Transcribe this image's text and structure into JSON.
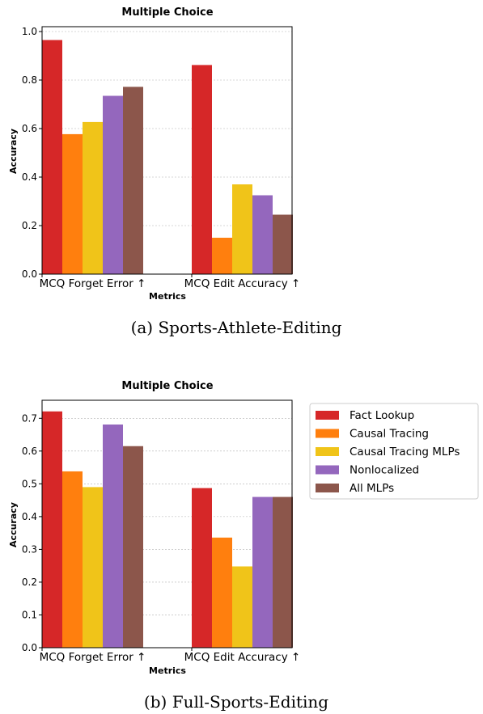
{
  "panels": [
    {
      "caption": "(a) Sports-Athlete-Editing",
      "chart_data": {
        "type": "bar",
        "title": "Multiple Choice",
        "xlabel": "Metrics",
        "ylabel": "Accuracy",
        "ylim": [
          0,
          1.02
        ],
        "yticks": [
          0.0,
          0.2,
          0.4,
          0.6,
          0.8,
          1.0
        ],
        "ytick_labels": [
          "0.0",
          "0.2",
          "0.4",
          "0.6",
          "0.8",
          "1.0"
        ],
        "grid": "horizontal",
        "categories": [
          "MCQ Forget Error ↑",
          "MCQ Edit Accuracy ↑"
        ],
        "series": [
          {
            "name": "Fact Lookup",
            "values": [
              0.965,
              0.862
            ]
          },
          {
            "name": "Causal Tracing",
            "values": [
              0.577,
              0.15
            ]
          },
          {
            "name": "Causal Tracing MLPs",
            "values": [
              0.627,
              0.37
            ]
          },
          {
            "name": "Nonlocalized",
            "values": [
              0.735,
              0.325
            ]
          },
          {
            "name": "All MLPs",
            "values": [
              0.772,
              0.245
            ]
          }
        ]
      }
    },
    {
      "caption": "(b) Full-Sports-Editing",
      "chart_data": {
        "type": "bar",
        "title": "Multiple Choice",
        "xlabel": "Metrics",
        "ylabel": "Accuracy",
        "ylim": [
          0,
          0.755
        ],
        "yticks": [
          0.0,
          0.1,
          0.2,
          0.3,
          0.4,
          0.5,
          0.6,
          0.7
        ],
        "ytick_labels": [
          "0.0",
          "0.1",
          "0.2",
          "0.3",
          "0.4",
          "0.5",
          "0.6",
          "0.7"
        ],
        "grid": "horizontal",
        "legend_position": "right",
        "categories": [
          "MCQ Forget Error ↑",
          "MCQ Edit Accuracy ↑"
        ],
        "series": [
          {
            "name": "Fact Lookup",
            "values": [
              0.721,
              0.487
            ]
          },
          {
            "name": "Causal Tracing",
            "values": [
              0.538,
              0.336
            ]
          },
          {
            "name": "Causal Tracing MLPs",
            "values": [
              0.49,
              0.248
            ]
          },
          {
            "name": "Nonlocalized",
            "values": [
              0.681,
              0.46
            ]
          },
          {
            "name": "All MLPs",
            "values": [
              0.615,
              0.46
            ]
          }
        ]
      }
    }
  ],
  "colors": [
    "#d62728",
    "#ff7f0e",
    "#f0c419",
    "#9467bd",
    "#8c564b"
  ]
}
